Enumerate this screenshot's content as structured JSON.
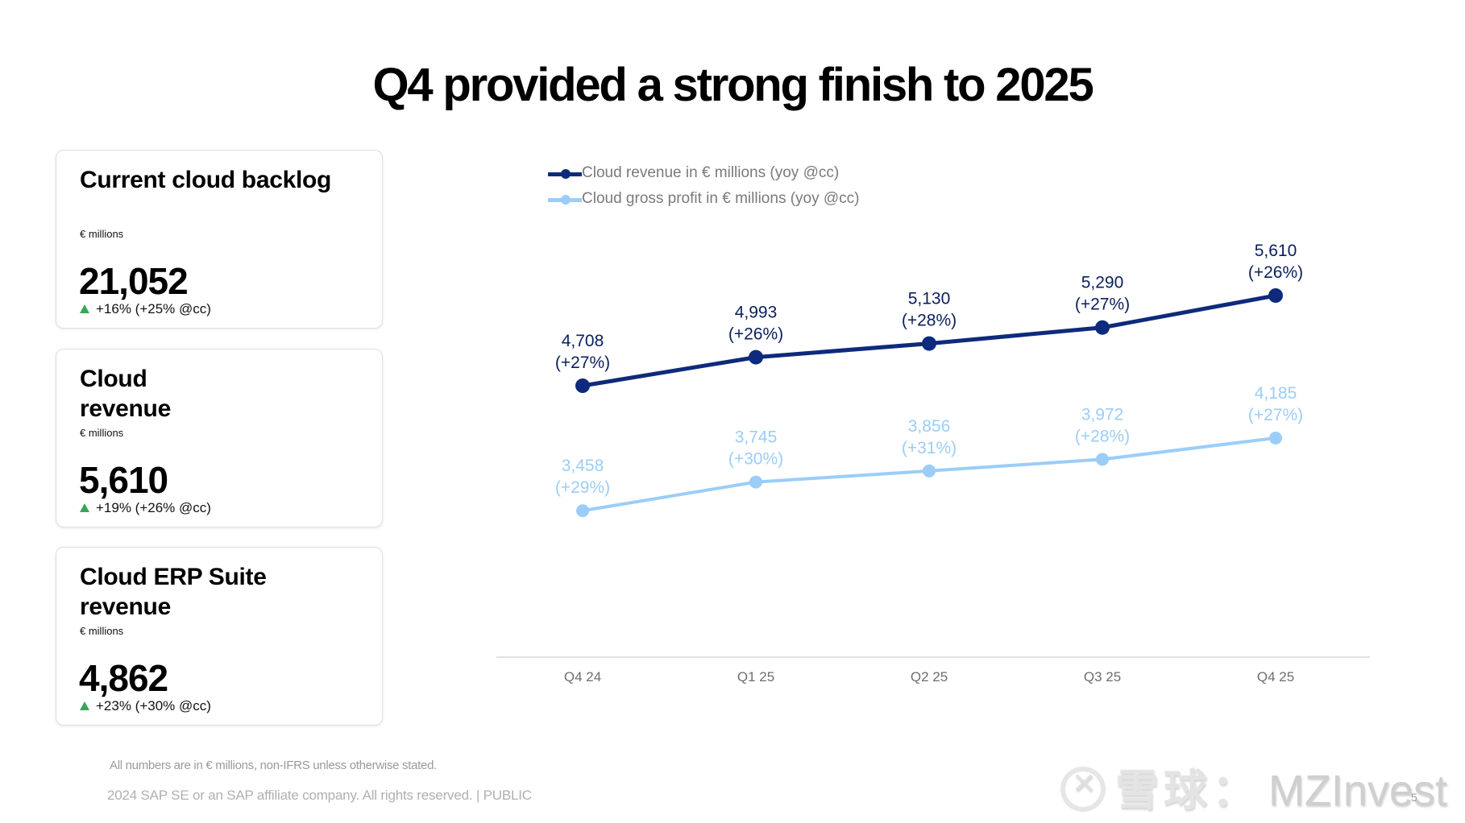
{
  "title": "Q4 provided a strong finish to 2025",
  "cards": [
    {
      "title": "Current cloud backlog",
      "unit": "€ millions",
      "value": "21,052",
      "change": "+16% (+25% @cc)",
      "direction": "up"
    },
    {
      "title": "Cloud revenue",
      "unit": "€ millions",
      "value": "5,610",
      "change": "+19% (+26% @cc)",
      "direction": "up"
    },
    {
      "title": "Cloud ERP Suite revenue",
      "unit": "€ millions",
      "value": "4,862",
      "change": "+23% (+30% @cc)",
      "direction": "up"
    }
  ],
  "colors": {
    "revenue": "#0e2a7c",
    "revenue_label": "#0a1f5c",
    "gross_profit": "#9bcdf8",
    "up_arrow": "#3aa55a",
    "axis": "#d9d9d9",
    "axis_label": "#6e6e6e"
  },
  "chart_data": {
    "type": "line",
    "title": "",
    "xlabel": "",
    "ylabel": "",
    "categories": [
      "Q4 24",
      "Q1 25",
      "Q2 25",
      "Q3 25",
      "Q4 25"
    ],
    "series": [
      {
        "name": "Cloud revenue in € millions (yoy @cc)",
        "values": [
          4708,
          4993,
          5130,
          5290,
          5610
        ],
        "value_labels": [
          "4,708",
          "4,993",
          "5,130",
          "5,290",
          "5,610"
        ],
        "growth_labels": [
          "(+27%)",
          "(+26%)",
          "(+28%)",
          "(+27%)",
          "(+26%)"
        ]
      },
      {
        "name": "Cloud gross profit in € millions (yoy @cc)",
        "values": [
          3458,
          3745,
          3856,
          3972,
          4185
        ],
        "value_labels": [
          "3,458",
          "3,745",
          "3,856",
          "3,972",
          "4,185"
        ],
        "growth_labels": [
          "(+29%)",
          "(+30%)",
          "(+31%)",
          "(+28%)",
          "(+27%)"
        ]
      }
    ],
    "legend": "top-left",
    "grid": false,
    "y_axis_visible": false
  },
  "footer": {
    "note": "All numbers are in € millions, non-IFRS unless otherwise stated.",
    "copyright": "2024 SAP SE or an SAP affiliate company. All rights reserved.  | PUBLIC",
    "page_number": "5"
  },
  "watermark": {
    "platform": "雪球：",
    "author": "MZInvest"
  }
}
